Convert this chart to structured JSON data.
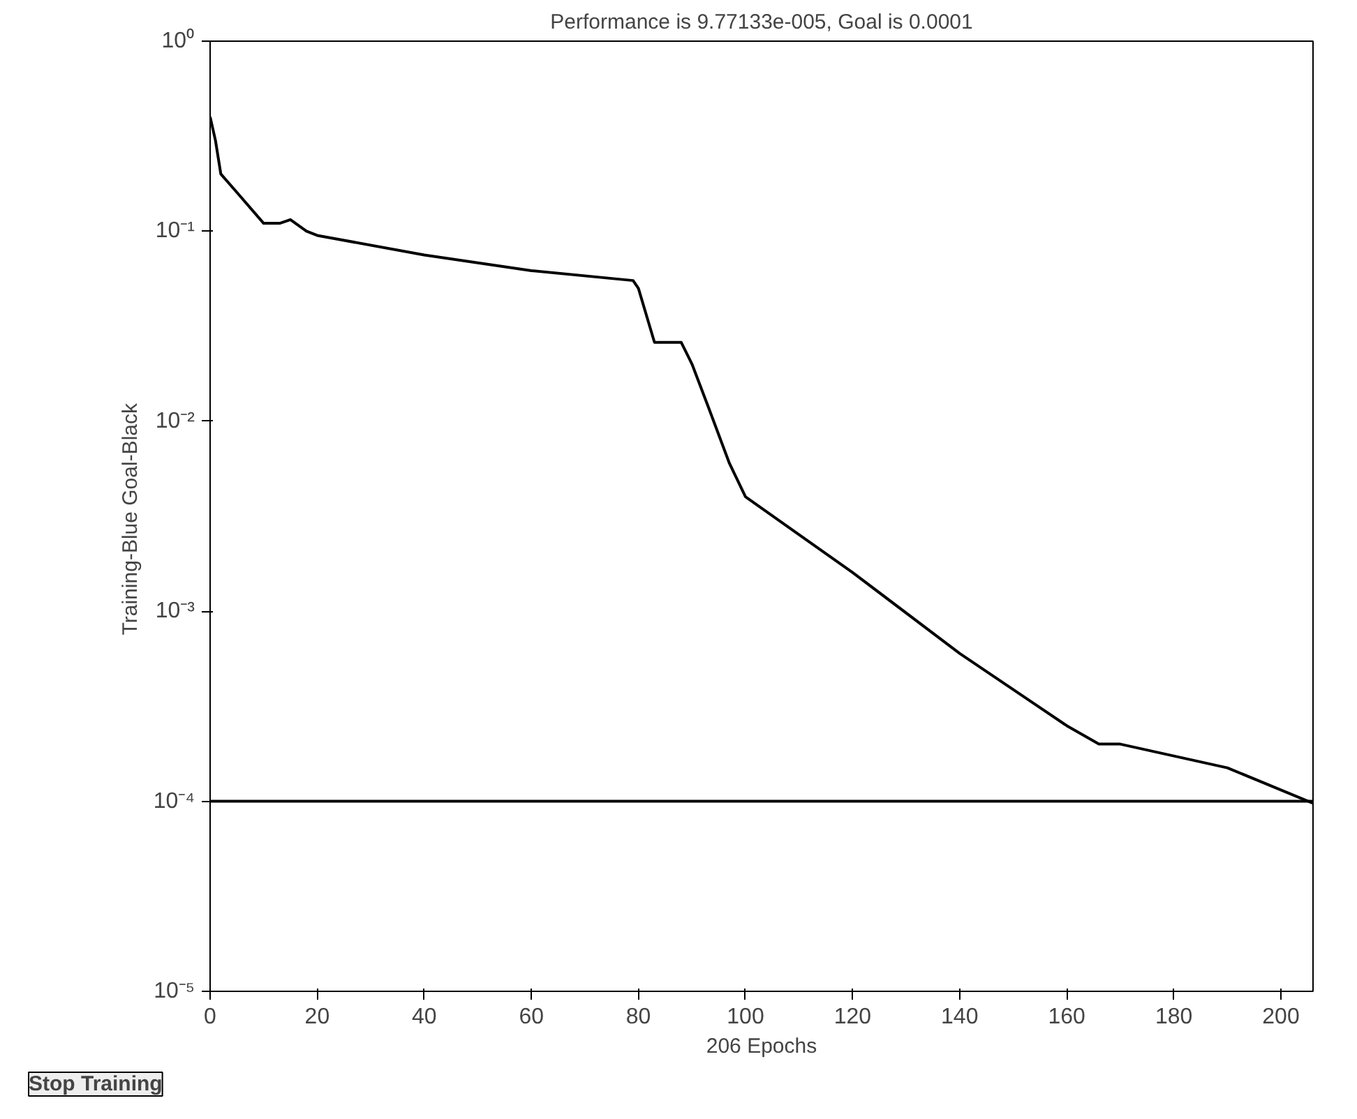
{
  "chart_data": {
    "type": "line",
    "title": "Performance is 9.77133e-005, Goal is 0.0001",
    "xlabel": "206 Epochs",
    "ylabel": "Training-Blue  Goal-Black",
    "log": "y",
    "grid": false,
    "annotations": [
      "Stop Training"
    ],
    "x": [
      0,
      1,
      2,
      5,
      10,
      13,
      15,
      18,
      20,
      40,
      60,
      79,
      80,
      83,
      88,
      90,
      93,
      97,
      100,
      120,
      140,
      160,
      166,
      170,
      190,
      206
    ],
    "series": [
      {
        "color": "#000000",
        "values": [
          0.4,
          0.3,
          0.2,
          0.16,
          0.11,
          0.11,
          0.115,
          0.1,
          0.095,
          0.075,
          0.062,
          0.055,
          0.05,
          0.026,
          0.026,
          0.02,
          0.012,
          0.006,
          0.004,
          0.0016,
          0.0006,
          0.00025,
          0.0002,
          0.0002,
          0.00015,
          9.77e-05
        ]
      }
    ],
    "ref_lines": [
      {
        "axis": "y",
        "value": 0.0001,
        "color": "#000000"
      }
    ],
    "xlim": [
      0,
      206
    ],
    "xticks": [
      0,
      20,
      40,
      60,
      80,
      100,
      120,
      140,
      160,
      180,
      200
    ],
    "ylim": [
      1e-05,
      1
    ],
    "yticks": [
      {
        "value": 1e-05,
        "label": "10⁻⁵"
      },
      {
        "value": 0.0001,
        "label": "10⁻⁴"
      },
      {
        "value": 0.001,
        "label": "10⁻³"
      },
      {
        "value": 0.01,
        "label": "10⁻²"
      },
      {
        "value": 0.1,
        "label": "10⁻¹"
      },
      {
        "value": 1,
        "label": "10⁰"
      }
    ]
  }
}
